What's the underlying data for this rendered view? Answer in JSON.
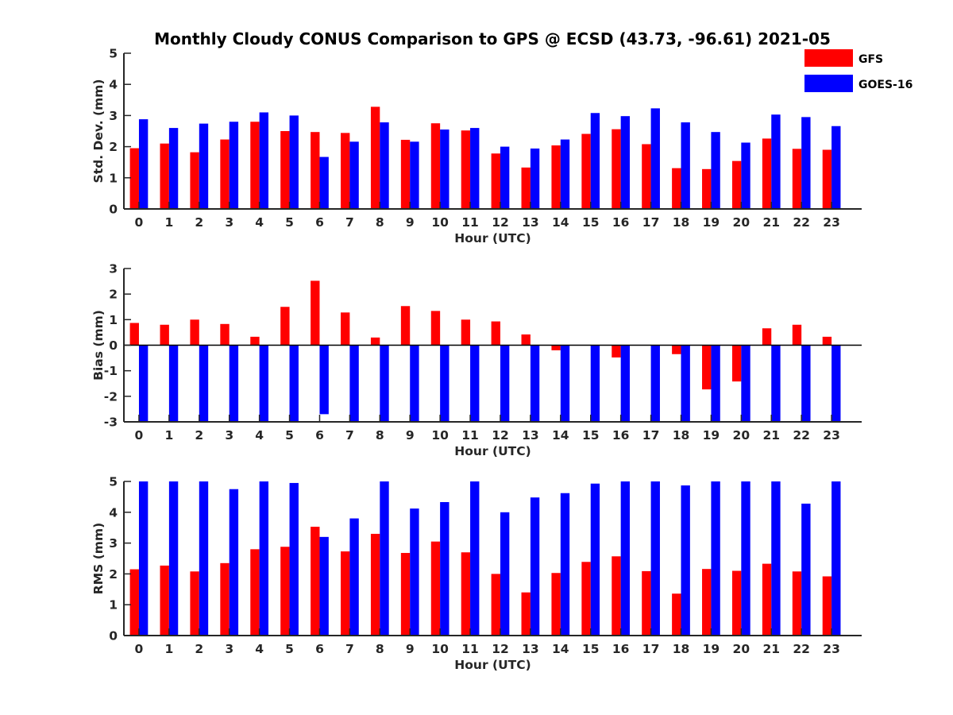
{
  "title": "Monthly Cloudy CONUS Comparison to GPS @ ECSD (43.73, -96.61) 2021-05",
  "colors": {
    "GFS": "#ff0000",
    "GOES-16": "#0000ff",
    "axis": "#262626"
  },
  "legend": [
    "GFS",
    "GOES-16"
  ],
  "chart_data": [
    {
      "type": "bar",
      "xlabel": "Hour (UTC)",
      "ylabel": "Std. Dev. (mm)",
      "ylim": [
        0,
        5
      ],
      "yticks": [
        0,
        1,
        2,
        3,
        4,
        5
      ],
      "categories": [
        "0",
        "1",
        "2",
        "3",
        "4",
        "5",
        "6",
        "7",
        "8",
        "9",
        "10",
        "11",
        "12",
        "13",
        "14",
        "15",
        "16",
        "17",
        "18",
        "19",
        "20",
        "21",
        "22",
        "23"
      ],
      "series": [
        {
          "name": "GFS",
          "values": [
            1.95,
            2.1,
            1.82,
            2.23,
            2.8,
            2.5,
            2.47,
            2.44,
            3.28,
            2.22,
            2.75,
            2.52,
            1.78,
            1.33,
            2.04,
            2.41,
            2.56,
            2.08,
            1.31,
            1.28,
            1.54,
            2.26,
            1.93,
            1.9
          ]
        },
        {
          "name": "GOES-16",
          "values": [
            2.88,
            2.6,
            2.74,
            2.8,
            3.1,
            3.0,
            1.67,
            2.16,
            2.78,
            2.16,
            2.55,
            2.6,
            2.0,
            1.94,
            2.23,
            3.08,
            2.98,
            3.23,
            2.78,
            2.47,
            2.13,
            3.03,
            2.95,
            2.66
          ]
        }
      ]
    },
    {
      "type": "bar",
      "xlabel": "Hour (UTC)",
      "ylabel": "Bias (mm)",
      "ylim": [
        -3,
        3
      ],
      "yticks": [
        -3,
        -2,
        -1,
        0,
        1,
        2,
        3
      ],
      "categories": [
        "0",
        "1",
        "2",
        "3",
        "4",
        "5",
        "6",
        "7",
        "8",
        "9",
        "10",
        "11",
        "12",
        "13",
        "14",
        "15",
        "16",
        "17",
        "18",
        "19",
        "20",
        "21",
        "22",
        "23"
      ],
      "series": [
        {
          "name": "GFS",
          "values": [
            0.87,
            0.8,
            1.0,
            0.83,
            0.33,
            1.5,
            2.52,
            1.28,
            0.3,
            1.53,
            1.34,
            1.0,
            0.93,
            0.42,
            -0.2,
            0.0,
            -0.48,
            0.0,
            -0.35,
            -1.73,
            -1.42,
            0.66,
            0.8,
            0.33
          ]
        },
        {
          "name": "GOES-16",
          "values": [
            -3.0,
            -3.0,
            -3.0,
            -3.0,
            -3.0,
            -3.0,
            -2.7,
            -3.0,
            -3.0,
            -3.0,
            -3.0,
            -3.0,
            -3.0,
            -3.0,
            -3.0,
            -3.0,
            -3.0,
            -3.0,
            -3.0,
            -3.0,
            -3.0,
            -3.0,
            -3.0,
            -3.0
          ]
        }
      ]
    },
    {
      "type": "bar",
      "xlabel": "Hour (UTC)",
      "ylabel": "RMS (mm)",
      "ylim": [
        0,
        5
      ],
      "yticks": [
        0,
        1,
        2,
        3,
        4,
        5
      ],
      "categories": [
        "0",
        "1",
        "2",
        "3",
        "4",
        "5",
        "6",
        "7",
        "8",
        "9",
        "10",
        "11",
        "12",
        "13",
        "14",
        "15",
        "16",
        "17",
        "18",
        "19",
        "20",
        "21",
        "22",
        "23"
      ],
      "series": [
        {
          "name": "GFS",
          "values": [
            2.15,
            2.27,
            2.08,
            2.35,
            2.8,
            2.88,
            3.53,
            2.73,
            3.3,
            2.68,
            3.05,
            2.7,
            2.0,
            1.4,
            2.03,
            2.39,
            2.57,
            2.09,
            1.36,
            2.16,
            2.1,
            2.33,
            2.08,
            1.92
          ]
        },
        {
          "name": "GOES-16",
          "values": [
            5.0,
            5.0,
            5.0,
            4.75,
            5.0,
            4.95,
            3.2,
            3.8,
            5.0,
            4.12,
            4.33,
            5.0,
            4.0,
            4.48,
            4.62,
            4.93,
            5.0,
            5.0,
            4.87,
            5.0,
            5.0,
            5.0,
            4.28,
            5.0
          ]
        }
      ]
    }
  ]
}
